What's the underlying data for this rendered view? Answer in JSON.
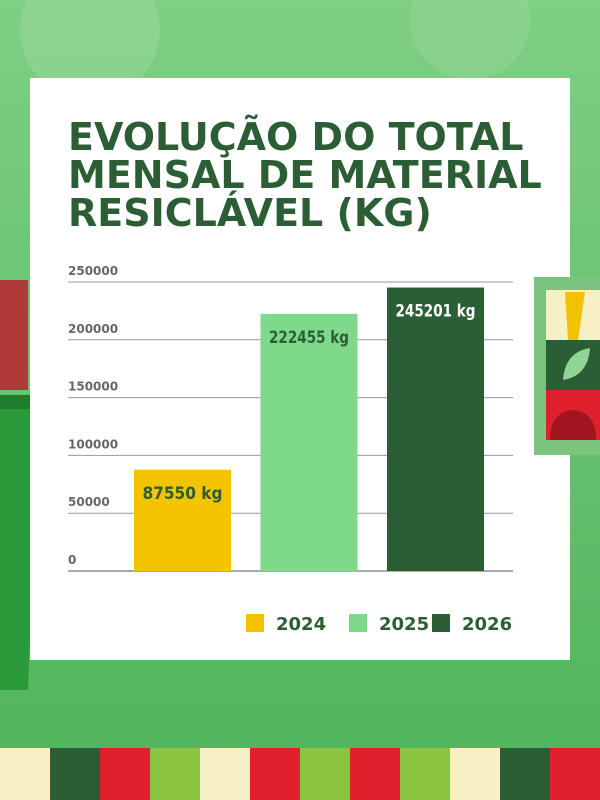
{
  "chart_data": {
    "type": "bar",
    "title": "EVOLUÇÃO DO TOTAL MENSAL DE MATERIAL RESICLÁVEL (KG)",
    "categories": [
      "2024",
      "2025",
      "2026"
    ],
    "values": [
      87550,
      222455,
      245201
    ],
    "value_labels": [
      "87550 kg",
      "222455 kg",
      "245201 kg"
    ],
    "colors": [
      "#f5c400",
      "#7fd98b",
      "#2c5e35"
    ],
    "ylim": [
      0,
      250000
    ],
    "yticks": [
      0,
      50000,
      100000,
      150000,
      200000,
      250000
    ],
    "grid": true,
    "legend": "bottom"
  }
}
